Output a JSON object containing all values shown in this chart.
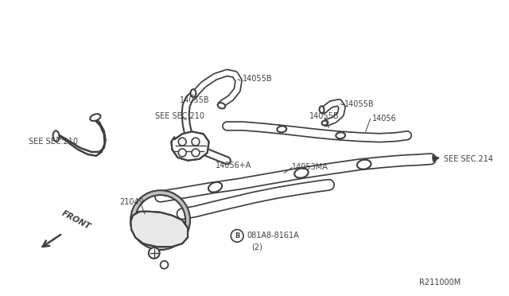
{
  "bg_color": "#ffffff",
  "line_color": "#404040",
  "text_color": "#404040",
  "figsize": [
    6.4,
    3.72
  ],
  "dpi": 100,
  "parts": {
    "left_hose_label": "SEE SEC.210",
    "center_label": "SEE SEC.210",
    "label_14055B_1": "14055B",
    "label_14055B_2": "14055B",
    "label_14055B_3": "14055B",
    "label_14055B_4": "14055B",
    "label_14056A": "14056+A",
    "label_14056": "14056",
    "label_14053MA": "14053MA",
    "label_sec214": "SEE SEC.214",
    "label_21049": "21049",
    "label_bolt": "081A8-8161A",
    "label_qty": "(2)",
    "label_front": "FRONT",
    "label_refcode": "R211000M"
  }
}
